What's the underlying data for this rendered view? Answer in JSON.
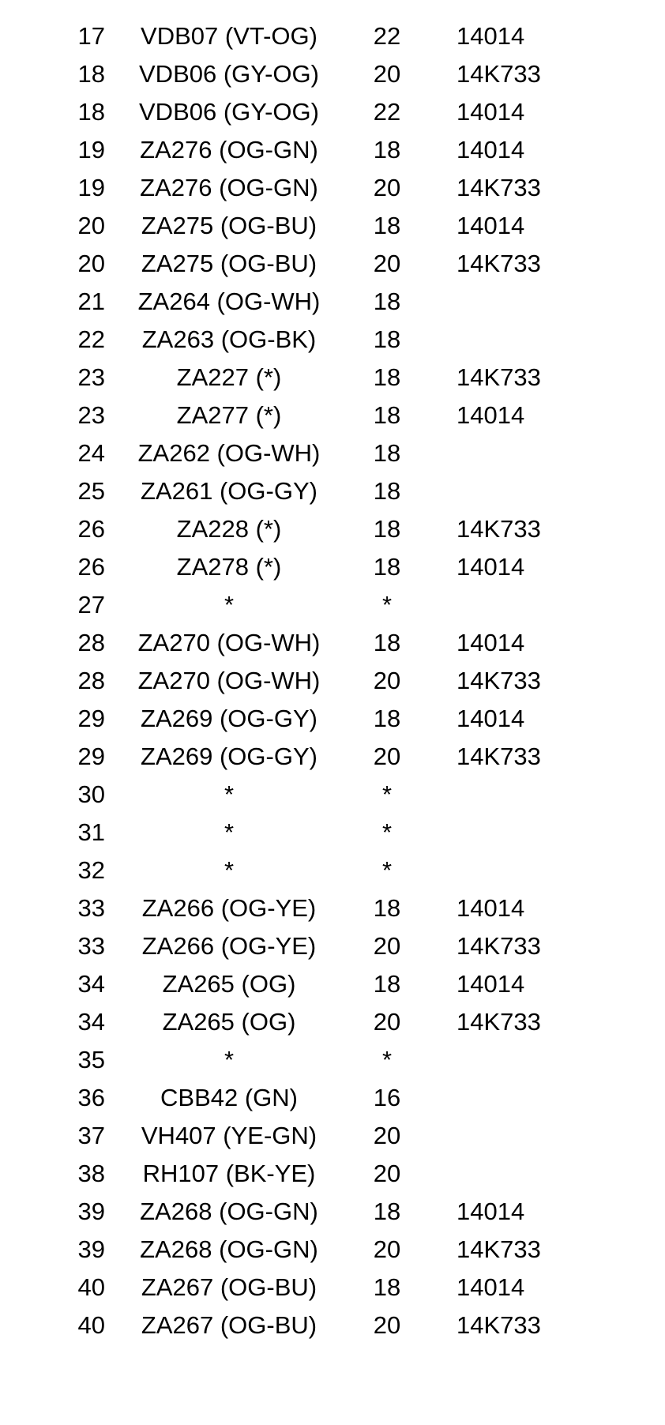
{
  "colors": {
    "background": "#ffffff",
    "text": "#000000"
  },
  "table": {
    "rows": [
      [
        "17",
        "VDB07 (VT-OG)",
        "22",
        "14014"
      ],
      [
        "18",
        "VDB06 (GY-OG)",
        "20",
        "14K733"
      ],
      [
        "18",
        "VDB06 (GY-OG)",
        "22",
        "14014"
      ],
      [
        "19",
        "ZA276 (OG-GN)",
        "18",
        "14014"
      ],
      [
        "19",
        "ZA276 (OG-GN)",
        "20",
        "14K733"
      ],
      [
        "20",
        "ZA275 (OG-BU)",
        "18",
        "14014"
      ],
      [
        "20",
        "ZA275 (OG-BU)",
        "20",
        "14K733"
      ],
      [
        "21",
        "ZA264 (OG-WH)",
        "18",
        ""
      ],
      [
        "22",
        "ZA263 (OG-BK)",
        "18",
        ""
      ],
      [
        "23",
        "ZA227 (*)",
        "18",
        "14K733"
      ],
      [
        "23",
        "ZA277 (*)",
        "18",
        "14014"
      ],
      [
        "24",
        "ZA262 (OG-WH)",
        "18",
        ""
      ],
      [
        "25",
        "ZA261 (OG-GY)",
        "18",
        ""
      ],
      [
        "26",
        "ZA228 (*)",
        "18",
        "14K733"
      ],
      [
        "26",
        "ZA278 (*)",
        "18",
        "14014"
      ],
      [
        "27",
        "*",
        "*",
        ""
      ],
      [
        "28",
        "ZA270 (OG-WH)",
        "18",
        "14014"
      ],
      [
        "28",
        "ZA270 (OG-WH)",
        "20",
        "14K733"
      ],
      [
        "29",
        "ZA269 (OG-GY)",
        "18",
        "14014"
      ],
      [
        "29",
        "ZA269 (OG-GY)",
        "20",
        "14K733"
      ],
      [
        "30",
        "*",
        "*",
        ""
      ],
      [
        "31",
        "*",
        "*",
        ""
      ],
      [
        "32",
        "*",
        "*",
        ""
      ],
      [
        "33",
        "ZA266 (OG-YE)",
        "18",
        "14014"
      ],
      [
        "33",
        "ZA266 (OG-YE)",
        "20",
        "14K733"
      ],
      [
        "34",
        "ZA265 (OG)",
        "18",
        "14014"
      ],
      [
        "34",
        "ZA265 (OG)",
        "20",
        "14K733"
      ],
      [
        "35",
        "*",
        "*",
        ""
      ],
      [
        "36",
        "CBB42 (GN)",
        "16",
        ""
      ],
      [
        "37",
        "VH407 (YE-GN)",
        "20",
        ""
      ],
      [
        "38",
        "RH107 (BK-YE)",
        "20",
        ""
      ],
      [
        "39",
        "ZA268 (OG-GN)",
        "18",
        "14014"
      ],
      [
        "39",
        "ZA268 (OG-GN)",
        "20",
        "14K733"
      ],
      [
        "40",
        "ZA267 (OG-BU)",
        "18",
        "14014"
      ],
      [
        "40",
        "ZA267 (OG-BU)",
        "20",
        "14K733"
      ]
    ]
  }
}
